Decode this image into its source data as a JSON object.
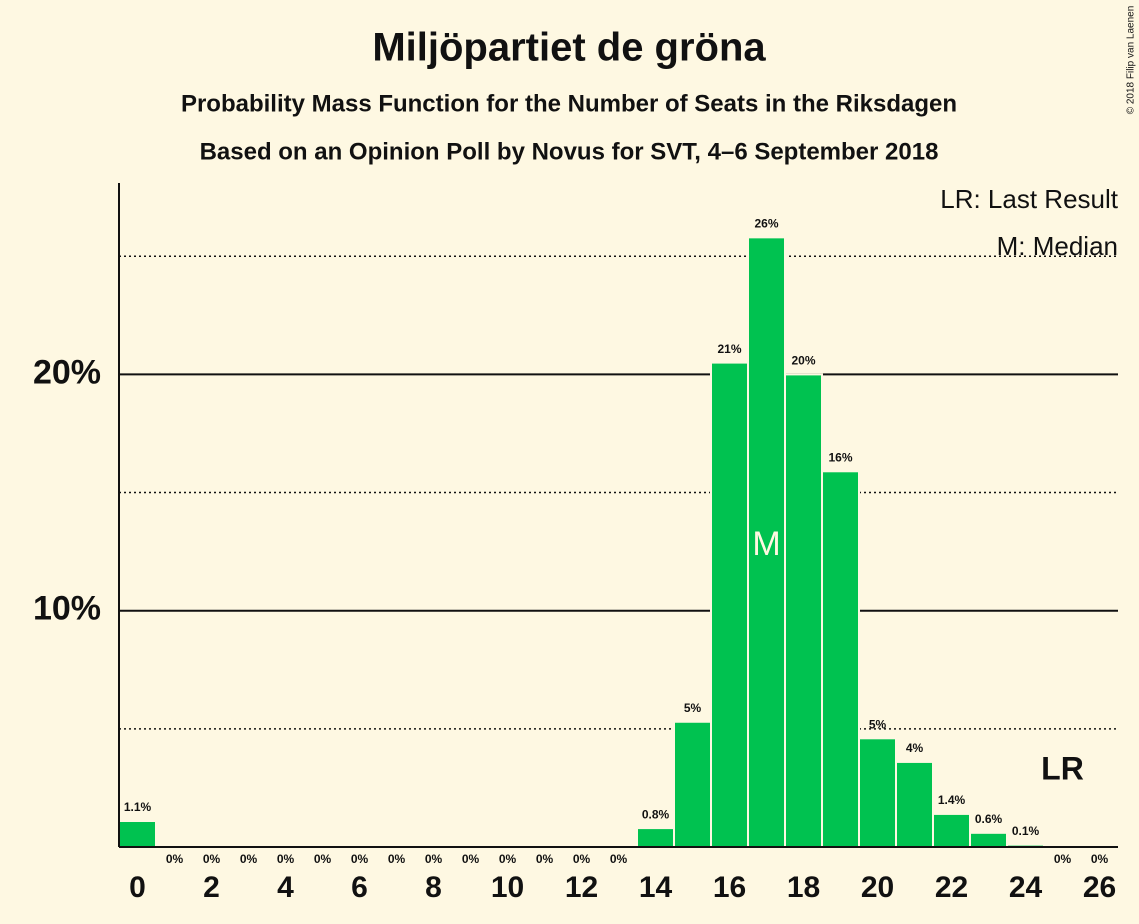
{
  "chart_data": {
    "type": "bar",
    "title": "Miljöpartiet de gröna",
    "subtitle": "Probability Mass Function for the Number of Seats in the Riksdagen",
    "subtitle2": "Based on an Opinion Poll by Novus for SVT, 4–6 September 2018",
    "copyright": "© 2018 Filip van Laenen",
    "legend_notes": [
      "LR: Last Result",
      "M: Median"
    ],
    "x": [
      0,
      1,
      2,
      3,
      4,
      5,
      6,
      7,
      8,
      9,
      10,
      11,
      12,
      13,
      14,
      15,
      16,
      17,
      18,
      19,
      20,
      21,
      22,
      23,
      24,
      25,
      26
    ],
    "values": [
      1.1,
      0,
      0,
      0,
      0,
      0,
      0,
      0,
      0,
      0,
      0,
      0,
      0,
      0,
      0.8,
      5.3,
      20.5,
      25.8,
      20.0,
      15.9,
      4.6,
      3.6,
      1.4,
      0.6,
      0.1,
      0,
      0
    ],
    "value_labels": [
      "1.1%",
      "0%",
      "0%",
      "0%",
      "0%",
      "0%",
      "0%",
      "0%",
      "0%",
      "0%",
      "0%",
      "0%",
      "0%",
      "0%",
      "0.8%",
      "5%",
      "21%",
      "26%",
      "20%",
      "16%",
      "5%",
      "4%",
      "1.4%",
      "0.6%",
      "0.1%",
      "0%",
      "0%"
    ],
    "color": "#00c250",
    "xlim": [
      -0.5,
      26.5
    ],
    "xticks": [
      0,
      2,
      4,
      6,
      8,
      10,
      12,
      14,
      16,
      18,
      20,
      22,
      24,
      26
    ],
    "ylim": [
      0,
      28.1
    ],
    "yticks": [
      {
        "value": 10,
        "label": "10%"
      },
      {
        "value": 20,
        "label": "20%"
      }
    ],
    "minor_gridlines": [
      5,
      15,
      25
    ],
    "grid": true,
    "median": {
      "x": 17,
      "label": "M"
    },
    "last_result": {
      "x": 25,
      "label": "LR"
    }
  }
}
